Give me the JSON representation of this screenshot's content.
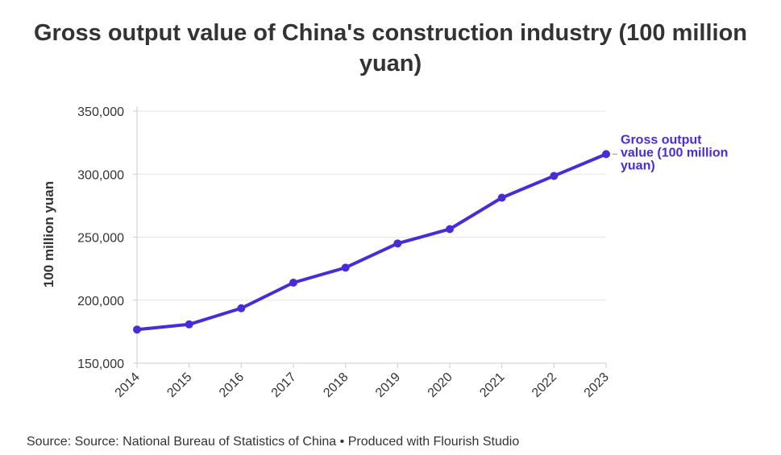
{
  "title": "Gross output value of China's construction industry (100 million yuan)",
  "source_text": "Source: Source: National Bureau of Statistics of China • Produced with Flourish Studio",
  "chart_data": {
    "type": "line",
    "title": "Gross output value of China's construction industry (100 million yuan)",
    "xlabel": "",
    "ylabel": "100 million yuan",
    "x": [
      "2014",
      "2015",
      "2016",
      "2017",
      "2018",
      "2019",
      "2020",
      "2021",
      "2022",
      "2023"
    ],
    "y_ticks": [
      "150,000",
      "200,000",
      "250,000",
      "300,000",
      "350,000"
    ],
    "ylim": [
      150000,
      350000
    ],
    "grid": true,
    "series": [
      {
        "name": "Gross output value (100 million yuan)",
        "label_lines": [
          "Gross output",
          "value (100 million",
          "yuan)"
        ],
        "color": "#4a2bd8",
        "values": [
          176700,
          180800,
          193600,
          213900,
          225800,
          245000,
          256400,
          281300,
          298600,
          315900
        ]
      }
    ]
  }
}
